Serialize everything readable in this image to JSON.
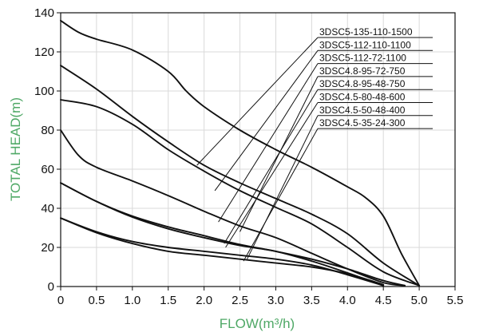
{
  "chart_data": {
    "type": "line",
    "xlabel": "FLOW(m³/h)",
    "ylabel": "TOTAL HEAD(m)",
    "xlim": [
      0,
      5.5
    ],
    "ylim": [
      0,
      140
    ],
    "xticks": [
      0,
      0.5,
      1.0,
      1.5,
      2.0,
      2.5,
      3.0,
      3.5,
      4.0,
      4.5,
      5.0,
      5.5
    ],
    "xtick_labels": [
      "0",
      "0.5",
      "1.0",
      "1.5",
      "2.0",
      "2.5",
      "3.0",
      "3.5",
      "4.0",
      "4.5",
      "5.0",
      "5.5"
    ],
    "yticks": [
      0,
      20,
      40,
      60,
      80,
      100,
      120,
      140
    ],
    "ytick_labels": [
      "0",
      "20",
      "40",
      "60",
      "80",
      "100",
      "120",
      "140"
    ],
    "grid": true,
    "legend_placement": "top-right, with leader lines to each curve",
    "axis_title_color": "#4fa866",
    "line_color": "#111111",
    "series": [
      {
        "name": "3DSC5-135-110-1500",
        "points": [
          [
            0,
            136
          ],
          [
            0.25,
            130
          ],
          [
            0.5,
            126.5
          ],
          [
            1.0,
            121
          ],
          [
            1.5,
            110
          ],
          [
            1.75,
            100
          ],
          [
            2.0,
            92
          ],
          [
            2.5,
            80
          ],
          [
            3.0,
            70
          ],
          [
            3.5,
            61
          ],
          [
            4.0,
            51
          ],
          [
            4.25,
            45.5
          ],
          [
            4.5,
            36
          ],
          [
            4.75,
            17
          ],
          [
            5.0,
            0.5
          ]
        ],
        "label_anchor": [
          1.9,
          62
        ]
      },
      {
        "name": "3DSC5-112-110-1100",
        "points": [
          [
            0,
            113
          ],
          [
            0.5,
            101
          ],
          [
            1.0,
            87
          ],
          [
            1.5,
            74
          ],
          [
            2.0,
            62
          ],
          [
            2.5,
            53
          ],
          [
            3.0,
            45
          ],
          [
            3.5,
            37
          ],
          [
            4.0,
            27
          ],
          [
            4.5,
            12
          ],
          [
            5.0,
            0.5
          ]
        ],
        "label_anchor": [
          2.15,
          49
        ]
      },
      {
        "name": "3DSC5-112-72-1100",
        "points": [
          [
            0,
            95.5
          ],
          [
            0.5,
            92
          ],
          [
            1.0,
            83
          ],
          [
            1.5,
            70
          ],
          [
            2.0,
            59
          ],
          [
            2.5,
            49
          ],
          [
            3.0,
            40.5
          ],
          [
            3.5,
            32
          ],
          [
            4.0,
            20
          ],
          [
            4.5,
            7.5
          ],
          [
            5.0,
            0.5
          ]
        ],
        "label_anchor": [
          2.2,
          33
        ]
      },
      {
        "name": "3DSC4.8-95-72-750",
        "points": [
          [
            0,
            80
          ],
          [
            0.25,
            67
          ],
          [
            0.5,
            61
          ],
          [
            1.0,
            54
          ],
          [
            1.5,
            46.5
          ],
          [
            2.0,
            38.5
          ],
          [
            2.5,
            31
          ],
          [
            3.0,
            25
          ],
          [
            3.5,
            17
          ],
          [
            4.0,
            9
          ],
          [
            4.5,
            2
          ],
          [
            4.8,
            0.5
          ]
        ],
        "label_anchor": [
          2.5,
          28
        ]
      },
      {
        "name": "3DSC4.8-95-48-750",
        "points": [
          [
            0,
            53
          ],
          [
            0.5,
            43.5
          ],
          [
            1.0,
            36
          ],
          [
            1.5,
            30.5
          ],
          [
            2.0,
            26
          ],
          [
            2.5,
            21.5
          ],
          [
            3.0,
            18
          ],
          [
            3.5,
            14
          ],
          [
            4.0,
            9
          ],
          [
            4.5,
            3
          ],
          [
            4.8,
            0.5
          ]
        ],
        "label_anchor": [
          2.28,
          22
        ]
      },
      {
        "name": "3DSC4.5-80-48-600",
        "points": [
          [
            0,
            53
          ],
          [
            0.5,
            43.5
          ],
          [
            1.0,
            35.5
          ],
          [
            1.5,
            29.5
          ],
          [
            2.0,
            25
          ],
          [
            2.5,
            21
          ],
          [
            3.0,
            18
          ],
          [
            3.5,
            13
          ],
          [
            4.0,
            7
          ],
          [
            4.5,
            0.5
          ]
        ],
        "label_anchor": [
          2.3,
          20
        ]
      },
      {
        "name": "3DSC4.5-50-48-400",
        "points": [
          [
            0,
            35
          ],
          [
            0.5,
            28
          ],
          [
            1.0,
            23
          ],
          [
            1.5,
            20
          ],
          [
            2.0,
            18
          ],
          [
            2.5,
            16
          ],
          [
            3.0,
            14
          ],
          [
            3.5,
            11
          ],
          [
            4.0,
            6
          ],
          [
            4.5,
            0.5
          ]
        ],
        "label_anchor": [
          2.6,
          14
        ]
      },
      {
        "name": "3DSC4.5-35-24-300",
        "points": [
          [
            0,
            35
          ],
          [
            0.5,
            27.5
          ],
          [
            1.0,
            22
          ],
          [
            1.5,
            18
          ],
          [
            2.0,
            16
          ],
          [
            2.5,
            14
          ],
          [
            3.0,
            12
          ],
          [
            3.5,
            10
          ],
          [
            4.0,
            6.5
          ],
          [
            4.5,
            1
          ]
        ],
        "label_anchor": [
          2.55,
          13
        ]
      }
    ]
  }
}
